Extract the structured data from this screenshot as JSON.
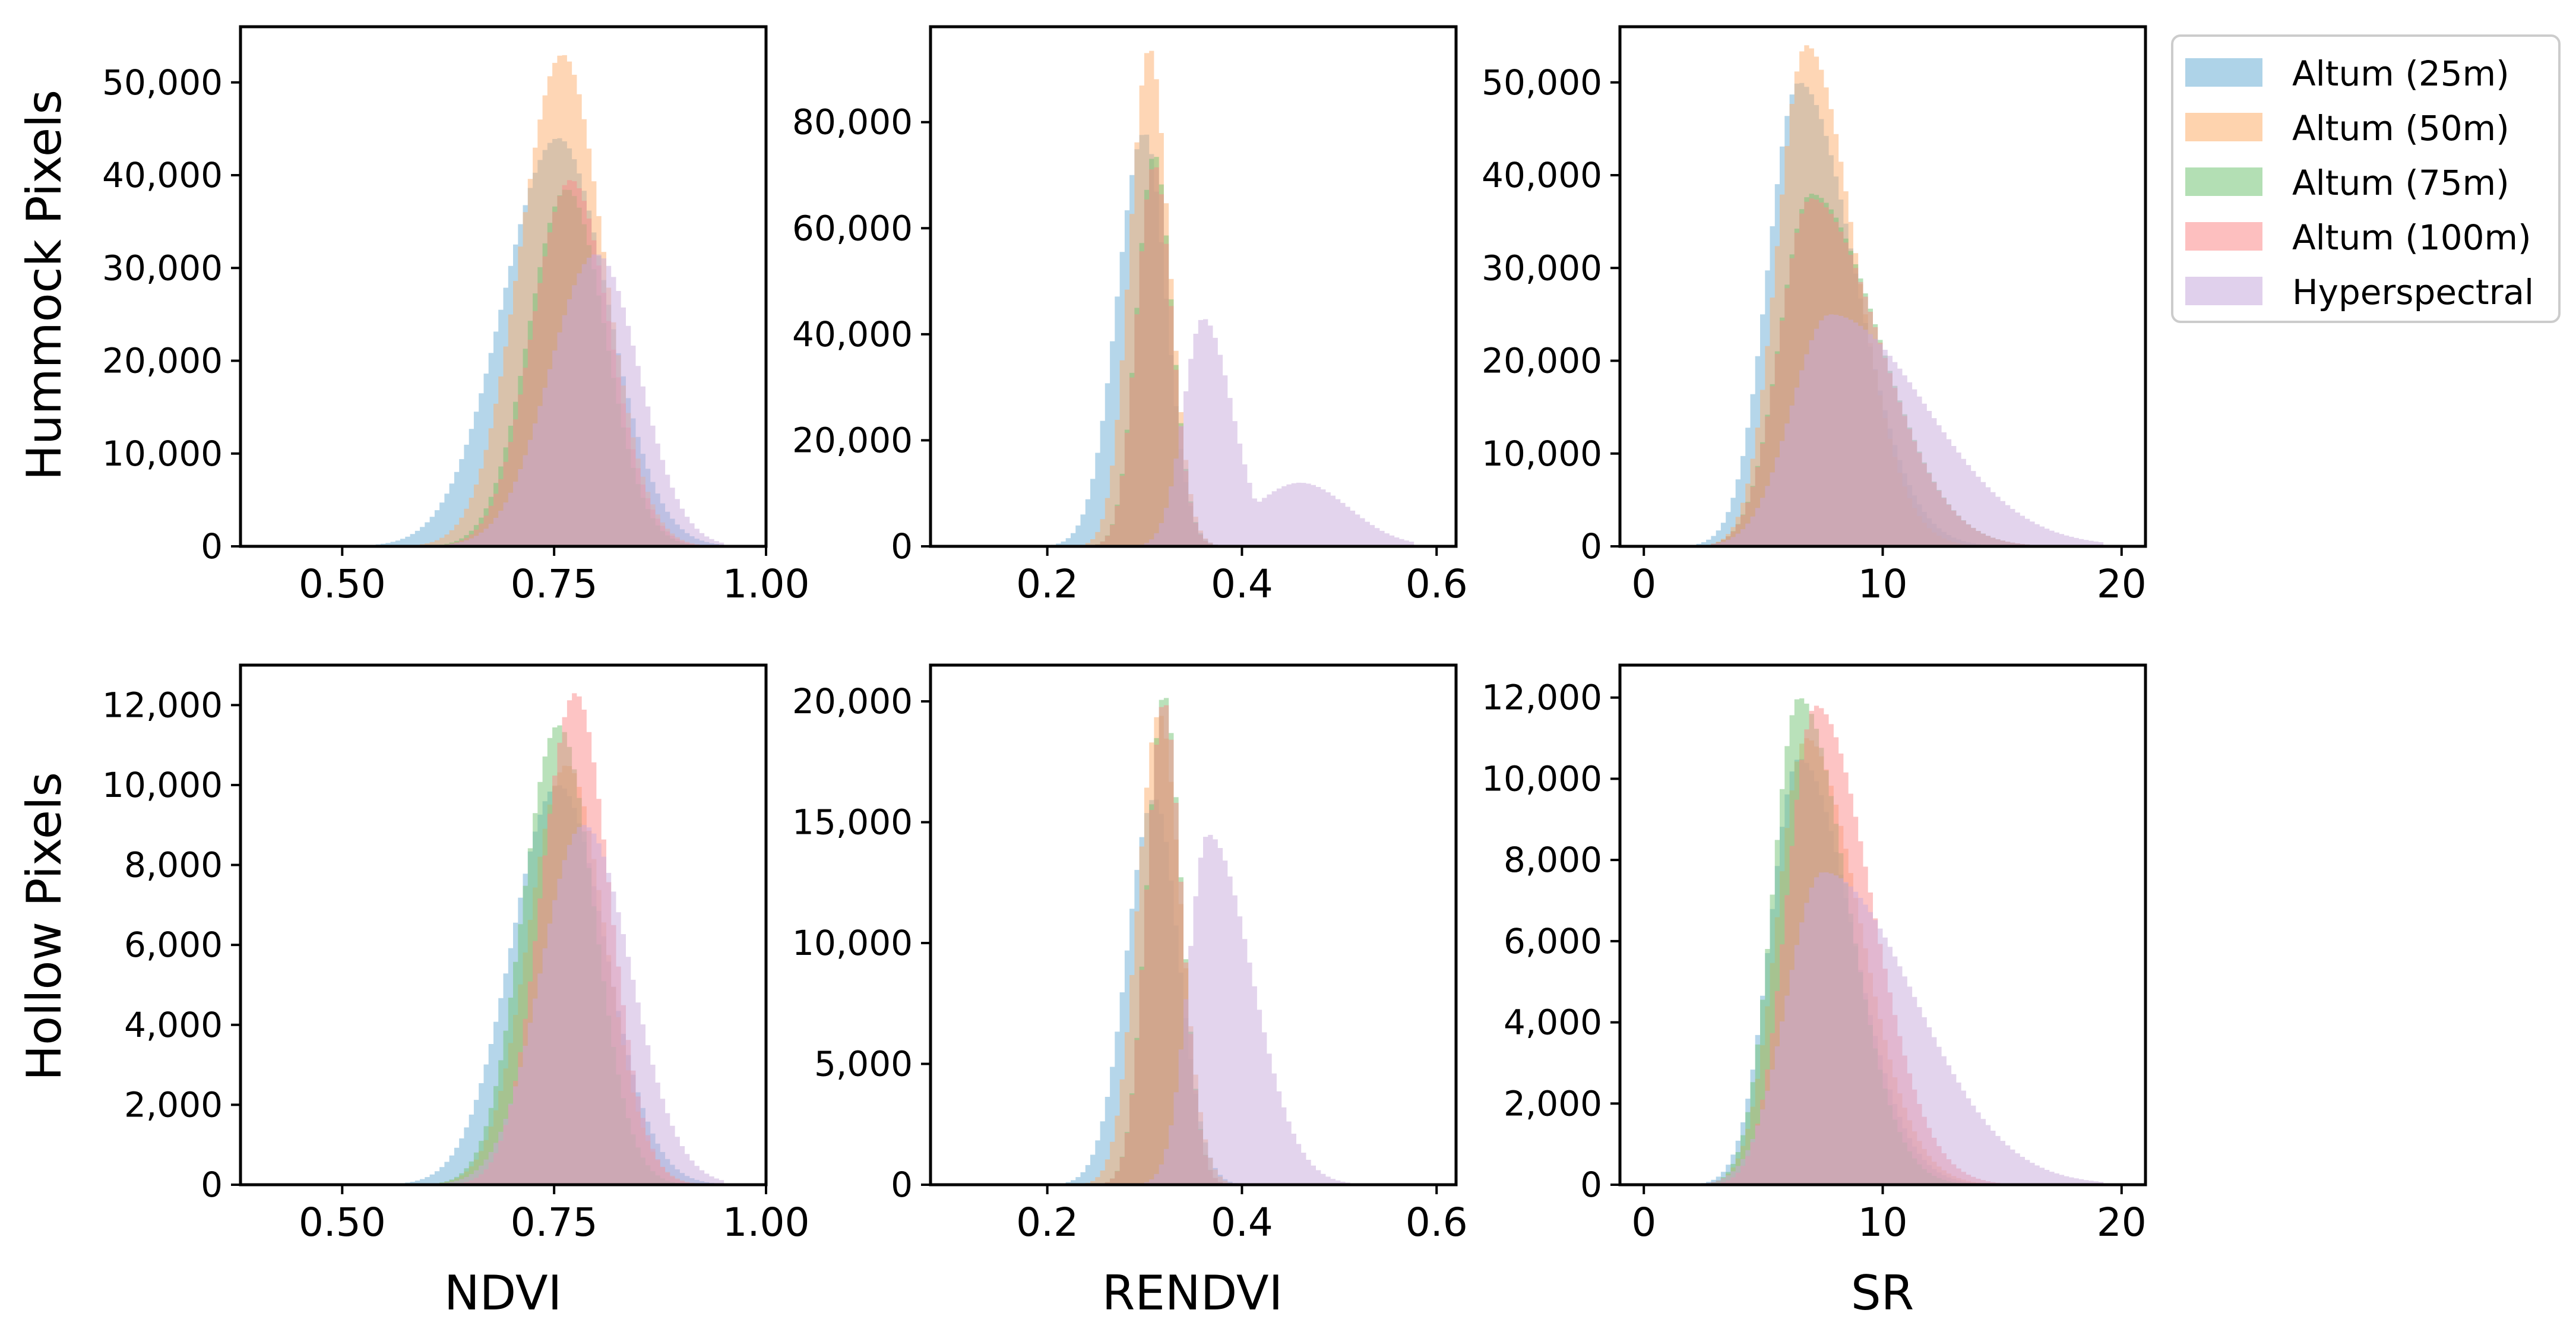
{
  "figure": {
    "row_labels": [
      "Hummock Pixels",
      "Hollow Pixels"
    ],
    "column_labels": [
      "NDVI",
      "RENDVI",
      "SR"
    ]
  },
  "legend": {
    "location": "top-right, outside plots",
    "entries": [
      {
        "label": "Altum (25m)",
        "color": "#6baed6"
      },
      {
        "label": "Altum (50m)",
        "color": "#fdae6b"
      },
      {
        "label": "Altum (75m)",
        "color": "#74c476"
      },
      {
        "label": "Altum (100m)",
        "color": "#fb8a8a"
      },
      {
        "label": "Hyperspectral",
        "color": "#c7a9dc"
      }
    ]
  },
  "chart_data": [
    {
      "type": "histogram",
      "id": "hummock-ndvi",
      "row": "Hummock Pixels",
      "xlabel": "NDVI",
      "ylabel": "Hummock Pixels",
      "xlim": [
        0.38,
        1.0
      ],
      "ylim": [
        0,
        56000
      ],
      "xticks": [
        0.5,
        0.75,
        1.0
      ],
      "xtick_labels": [
        "0.50",
        "0.75",
        "1.00"
      ],
      "yticks": [
        0,
        10000,
        20000,
        30000,
        40000,
        50000
      ],
      "ytick_labels": [
        "0",
        "10,000",
        "20,000",
        "30,000",
        "40,000",
        "50,000"
      ],
      "series": [
        {
          "name": "Altum (25m)",
          "peak_x": 0.755,
          "peak": 44000,
          "sigma_left": 0.065,
          "sigma_right": 0.058
        },
        {
          "name": "Altum (50m)",
          "peak_x": 0.76,
          "peak": 53000,
          "sigma_left": 0.05,
          "sigma_right": 0.048
        },
        {
          "name": "Altum (75m)",
          "peak_x": 0.765,
          "peak": 38500,
          "sigma_left": 0.045,
          "sigma_right": 0.045
        },
        {
          "name": "Altum (100m)",
          "peak_x": 0.77,
          "peak": 39500,
          "sigma_left": 0.045,
          "sigma_right": 0.045
        },
        {
          "name": "Hyperspectral",
          "peak_x": 0.8,
          "peak": 31500,
          "sigma_left": 0.055,
          "sigma_right": 0.05
        }
      ]
    },
    {
      "type": "histogram",
      "id": "hummock-rendvi",
      "row": "Hummock Pixels",
      "xlabel": "RENDVI",
      "ylabel": "Hummock Pixels",
      "xlim": [
        0.08,
        0.62
      ],
      "ylim": [
        0,
        98000
      ],
      "xticks": [
        0.2,
        0.4,
        0.6
      ],
      "xtick_labels": [
        "0.2",
        "0.4",
        "0.6"
      ],
      "yticks": [
        0,
        20000,
        40000,
        60000,
        80000
      ],
      "ytick_labels": [
        "0",
        "20,000",
        "40,000",
        "60,000",
        "80,000"
      ],
      "series": [
        {
          "name": "Altum (25m)",
          "peak_x": 0.3,
          "peak": 78000,
          "sigma_left": 0.028,
          "sigma_right": 0.022
        },
        {
          "name": "Altum (50m)",
          "peak_x": 0.305,
          "peak": 94000,
          "sigma_left": 0.02,
          "sigma_right": 0.02
        },
        {
          "name": "Altum (75m)",
          "peak_x": 0.31,
          "peak": 74000,
          "sigma_left": 0.018,
          "sigma_right": 0.018
        },
        {
          "name": "Altum (100m)",
          "peak_x": 0.31,
          "peak": 72000,
          "sigma_left": 0.018,
          "sigma_right": 0.018
        },
        {
          "name": "Hyperspectral",
          "peak_x": 0.36,
          "peak": 43000,
          "sigma_left": 0.02,
          "sigma_right": 0.03,
          "second_peak_x": 0.46,
          "second_peak": 12000,
          "second_sigma": 0.05
        }
      ]
    },
    {
      "type": "histogram",
      "id": "hummock-sr",
      "row": "Hummock Pixels",
      "xlabel": "SR",
      "ylabel": "Hummock Pixels",
      "xlim": [
        -1,
        21
      ],
      "ylim": [
        0,
        56000
      ],
      "xticks": [
        0,
        10,
        20
      ],
      "xtick_labels": [
        "0",
        "10",
        "20"
      ],
      "yticks": [
        0,
        10000,
        20000,
        30000,
        40000,
        50000
      ],
      "ytick_labels": [
        "0",
        "10,000",
        "20,000",
        "30,000",
        "40,000",
        "50,000"
      ],
      "series": [
        {
          "name": "Altum (25m)",
          "peak_x": 6.5,
          "peak": 50000,
          "sigma_left": 1.3,
          "sigma_right": 2.3
        },
        {
          "name": "Altum (50m)",
          "peak_x": 6.8,
          "peak": 54000,
          "sigma_left": 1.2,
          "sigma_right": 2.0
        },
        {
          "name": "Altum (75m)",
          "peak_x": 7.0,
          "peak": 38000,
          "sigma_left": 1.3,
          "sigma_right": 2.8
        },
        {
          "name": "Altum (100m)",
          "peak_x": 7.0,
          "peak": 37500,
          "sigma_left": 1.3,
          "sigma_right": 2.8
        },
        {
          "name": "Hyperspectral",
          "peak_x": 7.8,
          "peak": 25000,
          "sigma_left": 1.6,
          "sigma_right": 4.0
        }
      ]
    },
    {
      "type": "histogram",
      "id": "hollow-ndvi",
      "row": "Hollow Pixels",
      "xlabel": "NDVI",
      "ylabel": "Hollow Pixels",
      "xlim": [
        0.38,
        1.0
      ],
      "ylim": [
        0,
        13000
      ],
      "xticks": [
        0.5,
        0.75,
        1.0
      ],
      "xtick_labels": [
        "0.50",
        "0.75",
        "1.00"
      ],
      "yticks": [
        0,
        2000,
        4000,
        6000,
        8000,
        10000,
        12000
      ],
      "ytick_labels": [
        "0",
        "2,000",
        "4,000",
        "6,000",
        "8,000",
        "10,000",
        "12,000"
      ],
      "series": [
        {
          "name": "Altum (25m)",
          "peak_x": 0.755,
          "peak": 10000,
          "sigma_left": 0.055,
          "sigma_right": 0.055
        },
        {
          "name": "Altum (50m)",
          "peak_x": 0.765,
          "peak": 10500,
          "sigma_left": 0.045,
          "sigma_right": 0.045
        },
        {
          "name": "Altum (75m)",
          "peak_x": 0.755,
          "peak": 11500,
          "sigma_left": 0.042,
          "sigma_right": 0.042
        },
        {
          "name": "Altum (100m)",
          "peak_x": 0.775,
          "peak": 12300,
          "sigma_left": 0.04,
          "sigma_right": 0.04
        },
        {
          "name": "Hyperspectral",
          "peak_x": 0.785,
          "peak": 9000,
          "sigma_left": 0.05,
          "sigma_right": 0.055
        }
      ]
    },
    {
      "type": "histogram",
      "id": "hollow-rendvi",
      "row": "Hollow Pixels",
      "xlabel": "RENDVI",
      "ylabel": "Hollow Pixels",
      "xlim": [
        0.08,
        0.62
      ],
      "ylim": [
        0,
        21500
      ],
      "xticks": [
        0.2,
        0.4,
        0.6
      ],
      "xtick_labels": [
        "0.2",
        "0.4",
        "0.6"
      ],
      "yticks": [
        0,
        5000,
        10000,
        15000,
        20000
      ],
      "ytick_labels": [
        "0",
        "5,000",
        "10,000",
        "15,000",
        "20,000"
      ],
      "series": [
        {
          "name": "Altum (25m)",
          "peak_x": 0.31,
          "peak": 16000,
          "sigma_left": 0.028,
          "sigma_right": 0.025
        },
        {
          "name": "Altum (50m)",
          "peak_x": 0.315,
          "peak": 19500,
          "sigma_left": 0.022,
          "sigma_right": 0.022
        },
        {
          "name": "Altum (75m)",
          "peak_x": 0.32,
          "peak": 20300,
          "sigma_left": 0.018,
          "sigma_right": 0.018
        },
        {
          "name": "Altum (100m)",
          "peak_x": 0.32,
          "peak": 20000,
          "sigma_left": 0.018,
          "sigma_right": 0.018
        },
        {
          "name": "Hyperspectral",
          "peak_x": 0.365,
          "peak": 14500,
          "sigma_left": 0.02,
          "sigma_right": 0.045
        }
      ]
    },
    {
      "type": "histogram",
      "id": "hollow-sr",
      "row": "Hollow Pixels",
      "xlabel": "SR",
      "ylabel": "Hollow Pixels",
      "xlim": [
        -1,
        21
      ],
      "ylim": [
        0,
        12800
      ],
      "xticks": [
        0,
        10,
        20
      ],
      "xtick_labels": [
        "0",
        "10",
        "20"
      ],
      "yticks": [
        0,
        2000,
        4000,
        6000,
        8000,
        10000,
        12000
      ],
      "ytick_labels": [
        "0",
        "2,000",
        "4,000",
        "6,000",
        "8,000",
        "10,000",
        "12,000"
      ],
      "series": [
        {
          "name": "Altum (25m)",
          "peak_x": 6.5,
          "peak": 10500,
          "sigma_left": 1.2,
          "sigma_right": 2.2
        },
        {
          "name": "Altum (50m)",
          "peak_x": 6.8,
          "peak": 11000,
          "sigma_left": 1.2,
          "sigma_right": 2.2
        },
        {
          "name": "Altum (75m)",
          "peak_x": 6.5,
          "peak": 12000,
          "sigma_left": 1.1,
          "sigma_right": 2.0
        },
        {
          "name": "Altum (100m)",
          "peak_x": 7.2,
          "peak": 11800,
          "sigma_left": 1.2,
          "sigma_right": 2.3
        },
        {
          "name": "Hyperspectral",
          "peak_x": 7.5,
          "peak": 7700,
          "sigma_left": 1.5,
          "sigma_right": 3.8
        }
      ]
    }
  ]
}
